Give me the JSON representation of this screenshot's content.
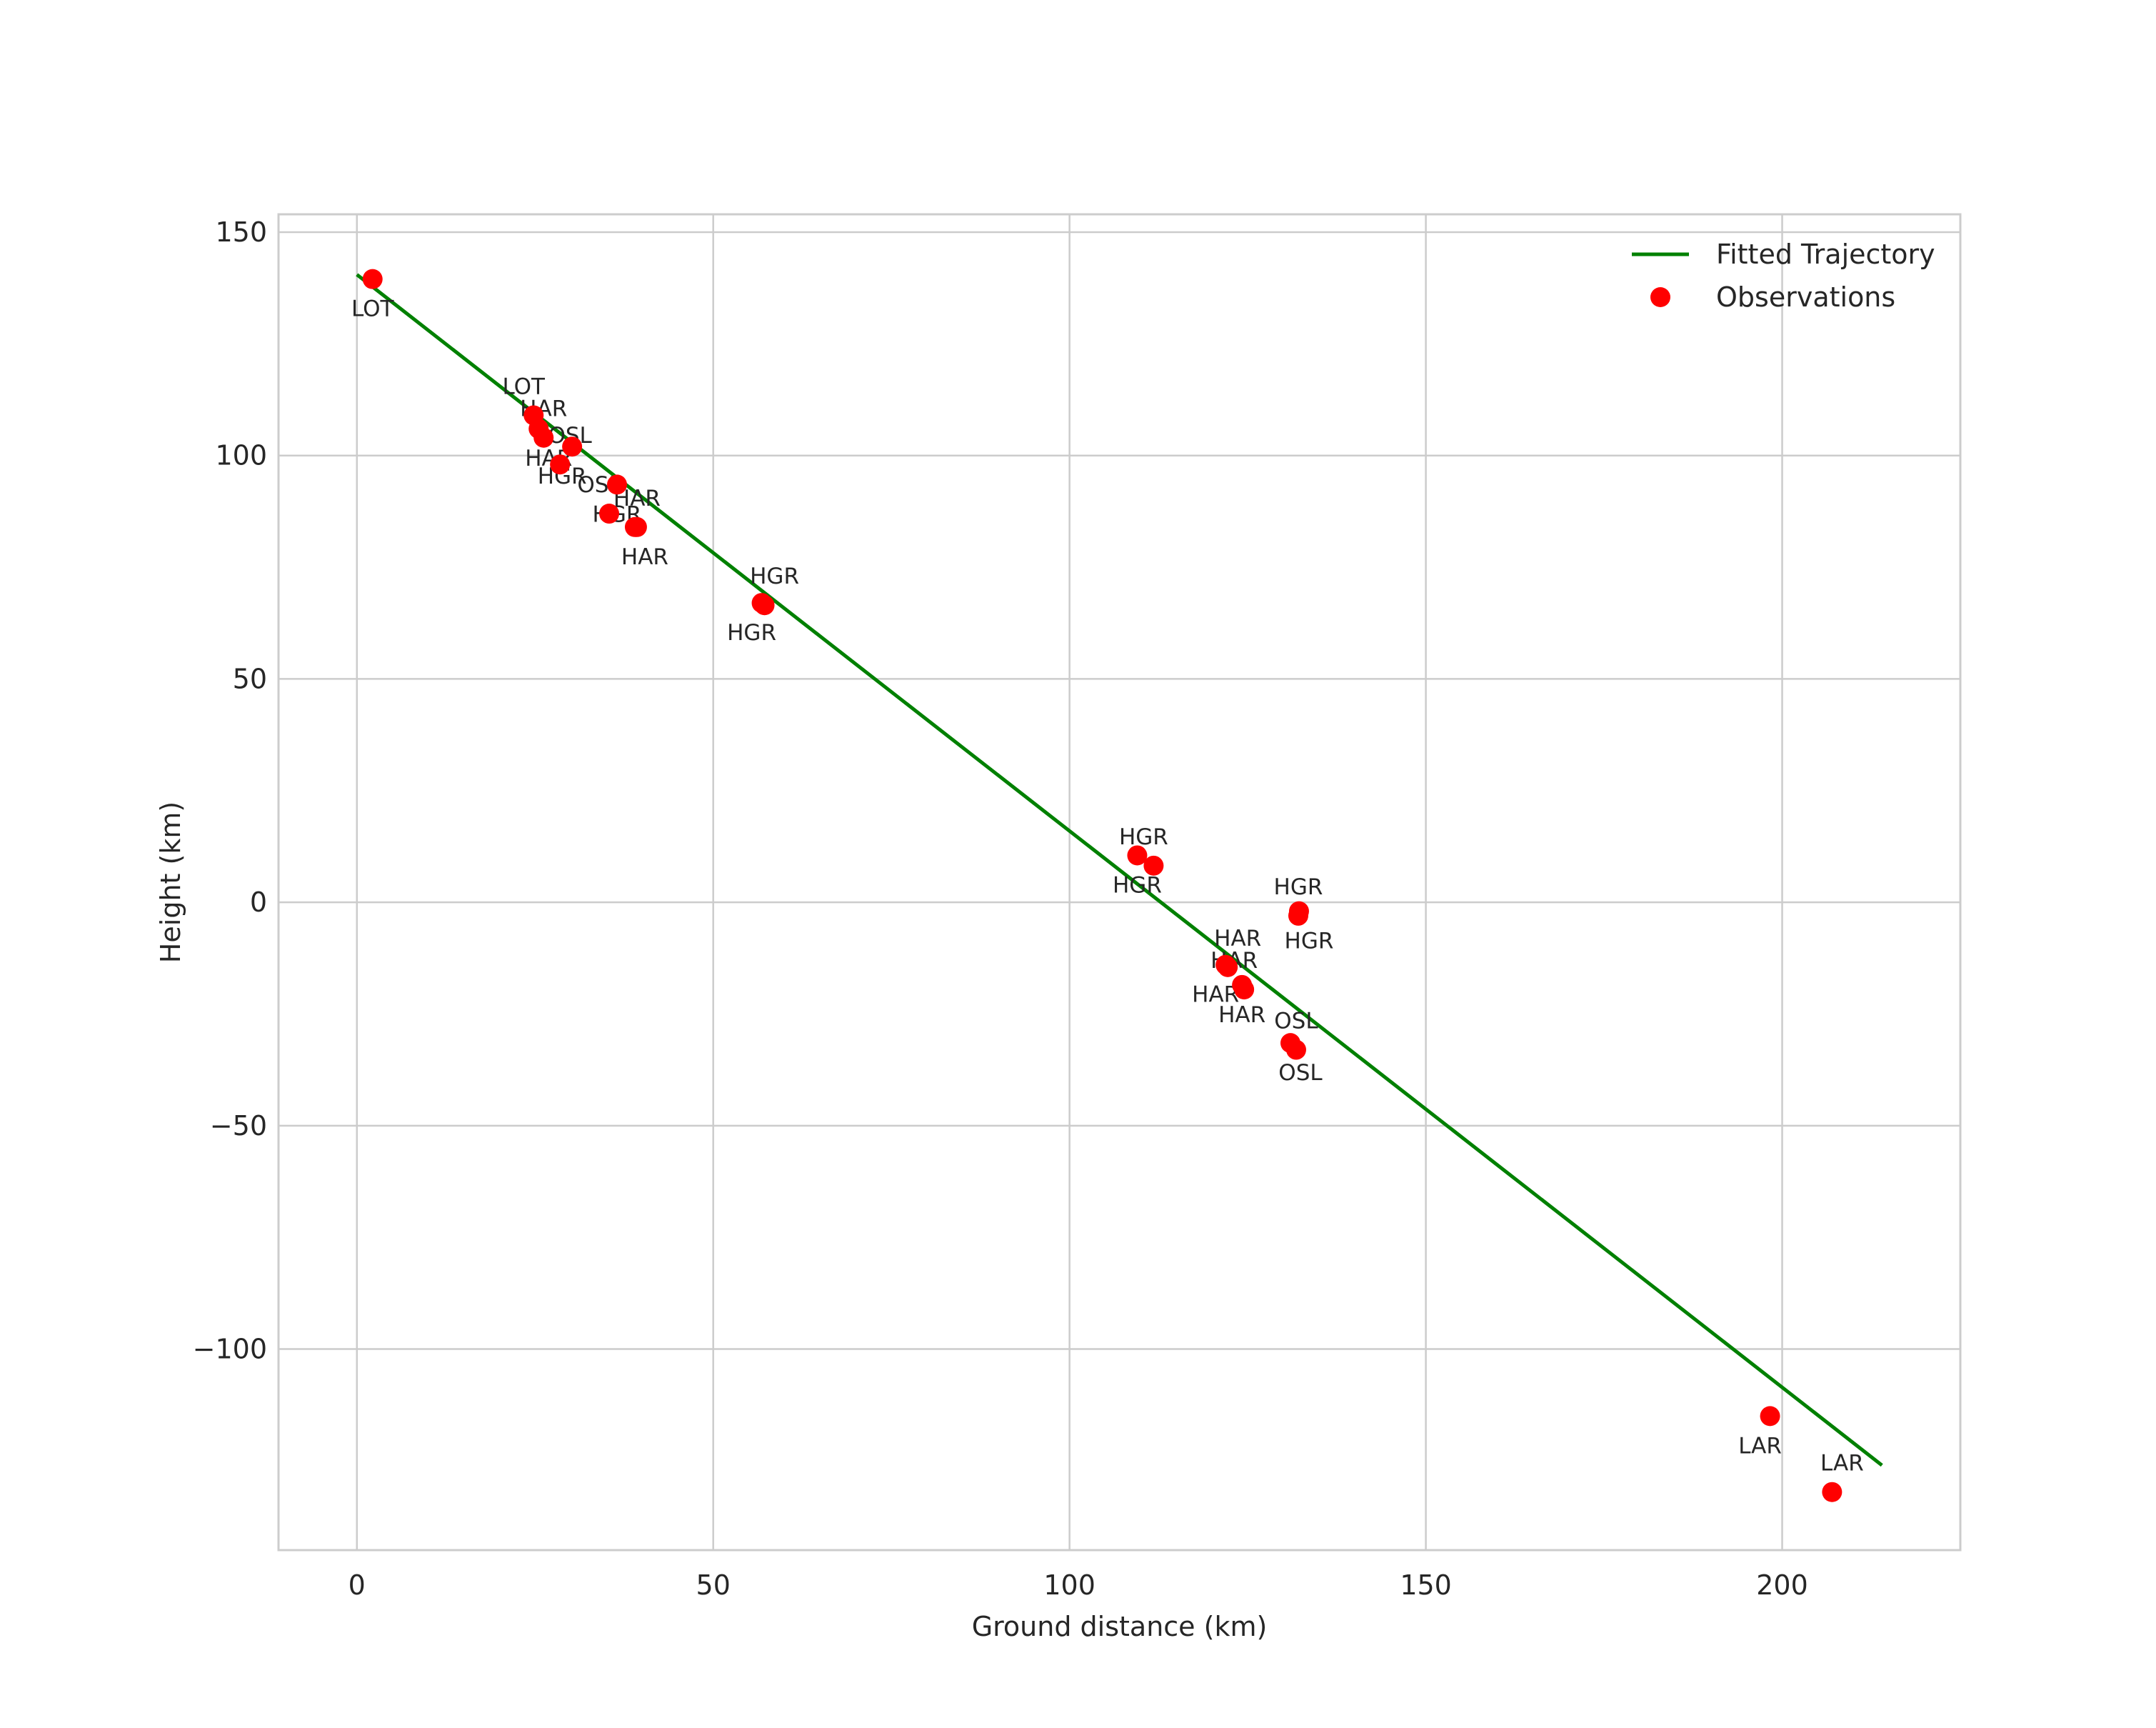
{
  "chart_data": {
    "type": "scatter",
    "title": "",
    "xlabel": "Ground distance (km)",
    "ylabel": "Height (km)",
    "xlim": [
      -11,
      225
    ],
    "ylim": [
      -145,
      154
    ],
    "grid": true,
    "legend_position": "top-right",
    "x_ticks": [
      0,
      50,
      100,
      150,
      200
    ],
    "y_ticks": [
      150,
      100,
      50,
      0,
      -50,
      -100
    ],
    "x_tick_labels": [
      "0",
      "50",
      "100",
      "150",
      "200"
    ],
    "y_tick_labels": [
      "150",
      "100",
      "50",
      "0",
      "−50",
      "−100"
    ],
    "series": [
      {
        "name": "Fitted Trajectory",
        "kind": "line",
        "color": "#008000",
        "x": [
          0,
          214
        ],
        "y": [
          140.5,
          -126
        ]
      },
      {
        "name": "Observations",
        "kind": "scatter",
        "color": "#ff0000",
        "points": [
          {
            "x": 2.2,
            "y": 139.5,
            "label": "LOT"
          },
          {
            "x": 24.8,
            "y": 109,
            "label": "LOT"
          },
          {
            "x": 25.5,
            "y": 106,
            "label": "HAR"
          },
          {
            "x": 26.2,
            "y": 104,
            "label": "HAR"
          },
          {
            "x": 30.2,
            "y": 102,
            "label": "HGR"
          },
          {
            "x": 28.5,
            "y": 98,
            "label": "OSL"
          },
          {
            "x": 36.5,
            "y": 93.5,
            "label": "HGR"
          },
          {
            "x": 35.4,
            "y": 87,
            "label": "OSL"
          },
          {
            "x": 39,
            "y": 84,
            "label": "HAR"
          },
          {
            "x": 39.3,
            "y": 84,
            "label": "HAR"
          },
          {
            "x": 56.8,
            "y": 67,
            "label": "HGR"
          },
          {
            "x": 57.2,
            "y": 66.5,
            "label": "HGR"
          },
          {
            "x": 109.5,
            "y": 10.5,
            "label": "HGR"
          },
          {
            "x": 111.8,
            "y": 8.2,
            "label": "HGR"
          },
          {
            "x": 132.2,
            "y": -2,
            "label": "HGR"
          },
          {
            "x": 132.1,
            "y": -3,
            "label": "HGR"
          },
          {
            "x": 121.9,
            "y": -14,
            "label": "HAR"
          },
          {
            "x": 122.2,
            "y": -14.5,
            "label": "HAR"
          },
          {
            "x": 124.2,
            "y": -18.5,
            "label": "HAR"
          },
          {
            "x": 124.5,
            "y": -19.5,
            "label": "HAR"
          },
          {
            "x": 131,
            "y": -31.5,
            "label": "OSL"
          },
          {
            "x": 131.8,
            "y": -33,
            "label": "OSL"
          },
          {
            "x": 198.3,
            "y": -115,
            "label": "LAR"
          },
          {
            "x": 207,
            "y": -132,
            "label": "LAR"
          }
        ]
      }
    ]
  }
}
